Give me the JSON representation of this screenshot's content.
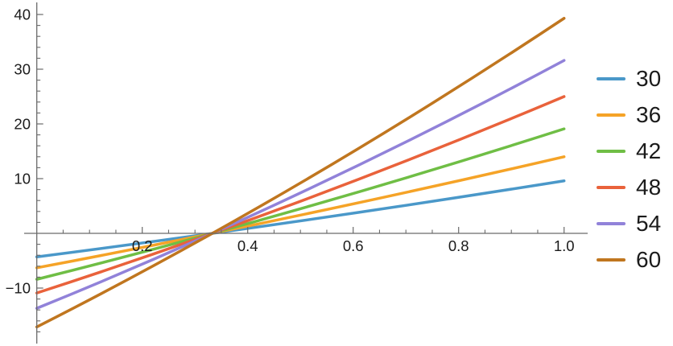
{
  "chart_data": {
    "type": "line",
    "title": "",
    "xlabel": "",
    "ylabel": "",
    "x_range": [
      0,
      1.0
    ],
    "y_range": [
      -20,
      42
    ],
    "x_major_ticks": [
      0.2,
      0.4,
      0.6,
      0.8,
      1.0
    ],
    "x_tick_labels": [
      "0.2",
      "0.4",
      "0.6",
      "0.8",
      "1.0"
    ],
    "x_minor_step": 0.05,
    "y_major_ticks": [
      -10,
      10,
      20,
      30,
      40
    ],
    "y_tick_labels": [
      "−10",
      "10",
      "20",
      "30",
      "40"
    ],
    "y_minor_step": 2,
    "grid": false,
    "legend_position": "right-outside",
    "axis_color": "#6a6a6a",
    "label_color": "#1b1b1b",
    "common_zero_crossing_x": 0.333,
    "series": [
      {
        "name": "30",
        "color": "#4A98C9",
        "x": [
          0,
          0.333,
          1.0
        ],
        "y": [
          -4.3,
          0,
          9.6
        ]
      },
      {
        "name": "36",
        "color": "#F5A327",
        "x": [
          0,
          0.333,
          1.0
        ],
        "y": [
          -6.3,
          0,
          14.0
        ]
      },
      {
        "name": "42",
        "color": "#6FBE45",
        "x": [
          0,
          0.333,
          1.0
        ],
        "y": [
          -8.4,
          0,
          19.1
        ]
      },
      {
        "name": "48",
        "color": "#E9623B",
        "x": [
          0,
          0.333,
          1.0
        ],
        "y": [
          -10.9,
          0,
          25.0
        ]
      },
      {
        "name": "54",
        "color": "#9182D9",
        "x": [
          0,
          0.333,
          1.0
        ],
        "y": [
          -13.7,
          0,
          31.6
        ]
      },
      {
        "name": "60",
        "color": "#C0761F",
        "x": [
          0,
          0.333,
          1.0
        ],
        "y": [
          -17.1,
          0,
          39.3
        ]
      }
    ]
  }
}
